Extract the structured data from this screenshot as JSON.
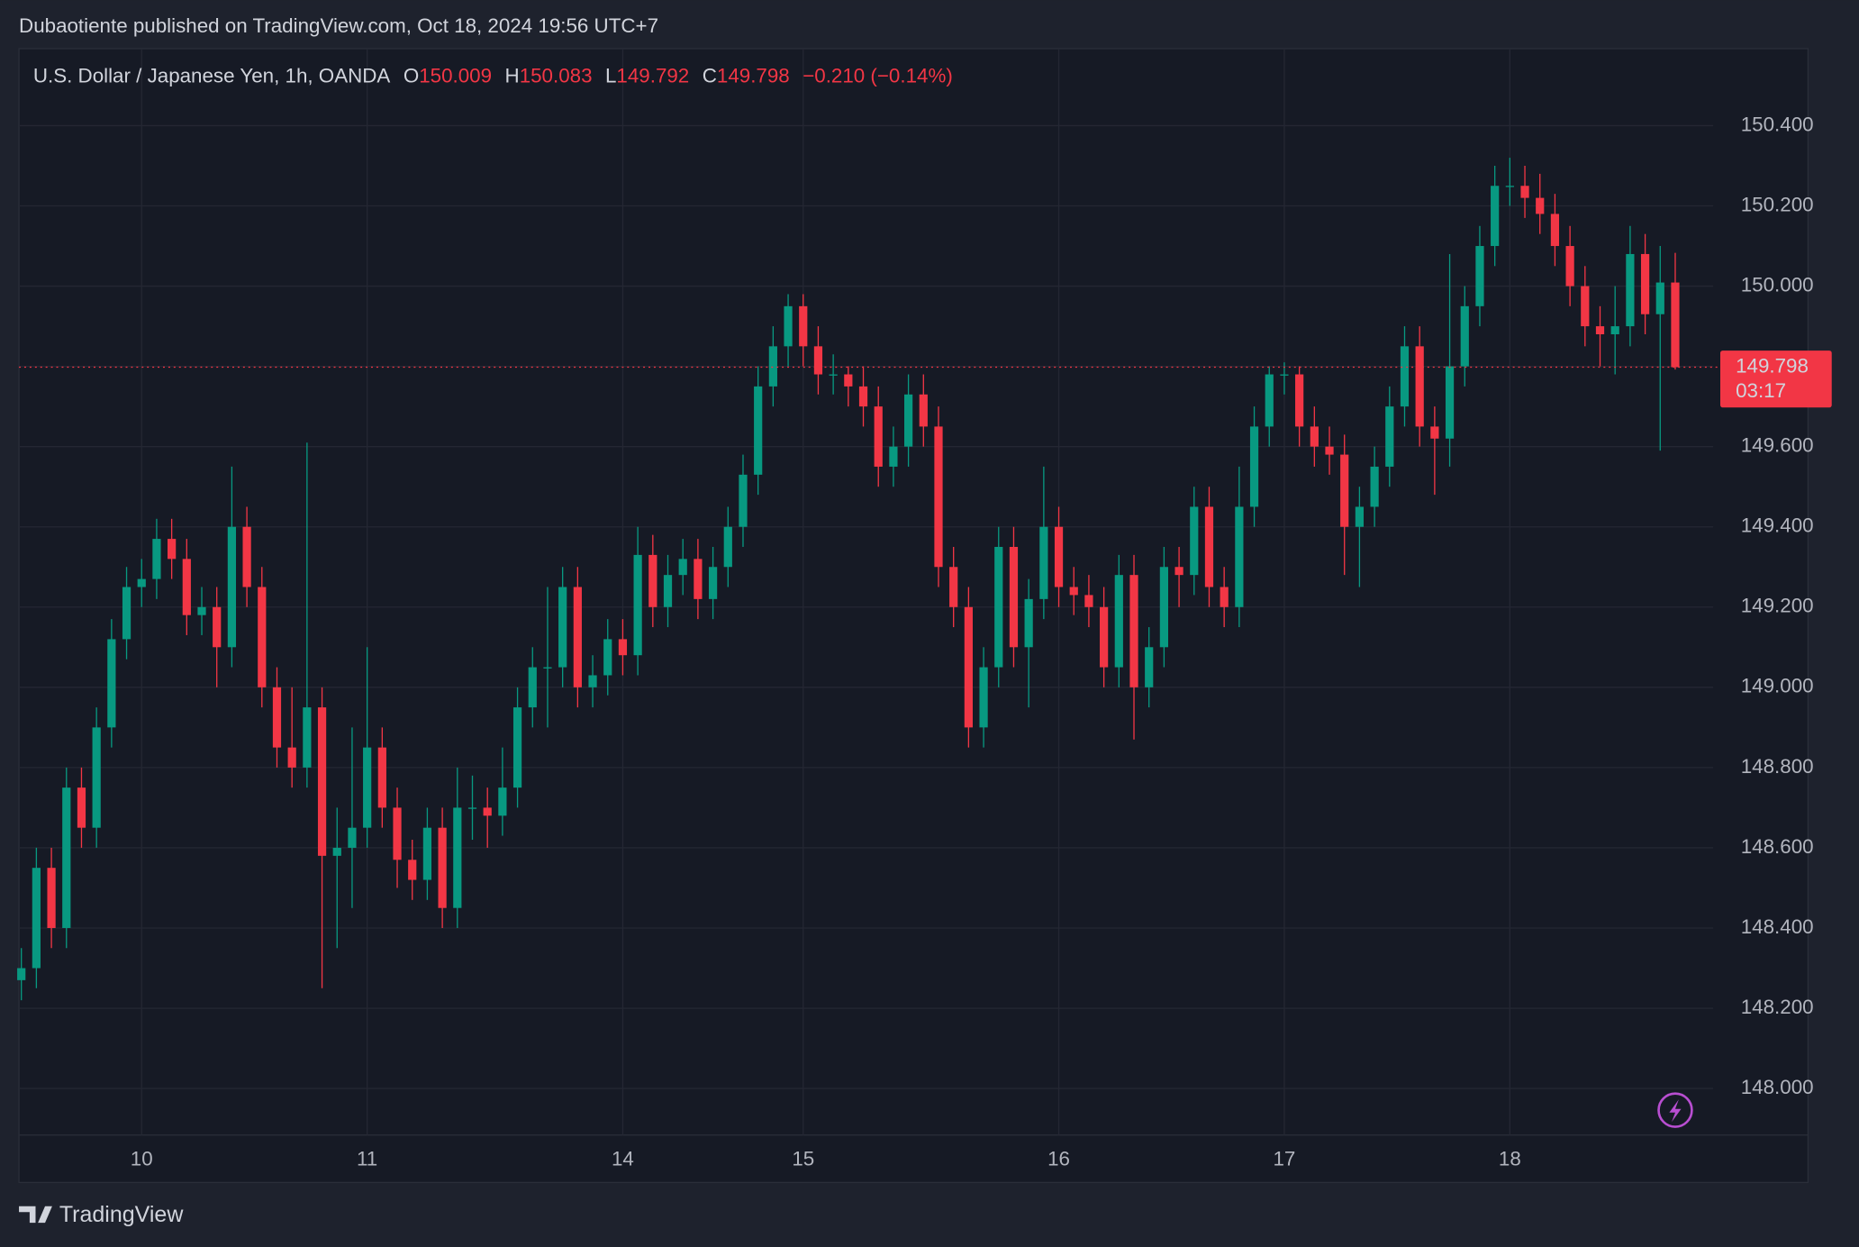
{
  "header": {
    "title": "Dubaotiente published on TradingView.com, Oct 18, 2024 19:56 UTC+7"
  },
  "footer": {
    "brand": "TradingView"
  },
  "chart_data": {
    "type": "candlestick",
    "legend": {
      "symbol": "U.S. Dollar / Japanese Yen, 1h, OANDA",
      "items": [
        {
          "key": "O",
          "value": 150.009
        },
        {
          "key": "H",
          "value": 150.083
        },
        {
          "key": "L",
          "value": 149.792
        },
        {
          "key": "C",
          "value": 149.798
        }
      ],
      "change": "−0.210 (−0.14%)"
    },
    "up_color": "#089981",
    "down_color": "#f23645",
    "last_price": {
      "value": 149.798,
      "countdown": "03:17"
    },
    "ylim": [
      147.884,
      150.592
    ],
    "yticks": [
      {
        "value": 148,
        "label": "148.000"
      },
      {
        "value": 148.2,
        "label": "148.200"
      },
      {
        "value": 148.4,
        "label": "148.400"
      },
      {
        "value": 148.6,
        "label": "148.600"
      },
      {
        "value": 148.8,
        "label": "148.800"
      },
      {
        "value": 149,
        "label": "149.000"
      },
      {
        "value": 149.2,
        "label": "149.200"
      },
      {
        "value": 149.4,
        "label": "149.400"
      },
      {
        "value": 149.6,
        "label": "149.600"
      },
      {
        "value": 149.8,
        "label": "149.800"
      },
      {
        "value": 150,
        "label": "150.000"
      },
      {
        "value": 150.2,
        "label": "150.200"
      },
      {
        "value": 150.4,
        "label": "150.400"
      }
    ],
    "grid": true,
    "categories": [
      null,
      null,
      null,
      null,
      null,
      null,
      null,
      null,
      "10",
      null,
      null,
      null,
      null,
      null,
      null,
      null,
      null,
      null,
      null,
      null,
      null,
      null,
      null,
      "11",
      null,
      null,
      null,
      null,
      null,
      null,
      null,
      null,
      null,
      null,
      null,
      null,
      null,
      null,
      null,
      null,
      "14",
      null,
      null,
      null,
      null,
      null,
      null,
      null,
      null,
      null,
      null,
      null,
      "15",
      null,
      null,
      null,
      null,
      null,
      null,
      null,
      null,
      null,
      null,
      null,
      null,
      null,
      null,
      null,
      null,
      "16",
      null,
      null,
      null,
      null,
      null,
      null,
      null,
      null,
      null,
      null,
      null,
      null,
      null,
      null,
      "17",
      null,
      null,
      null,
      null,
      null,
      null,
      null,
      null,
      null,
      null,
      null,
      null,
      null,
      null,
      "18",
      null,
      null,
      null,
      null,
      null,
      null,
      null,
      null,
      null,
      null,
      null
    ],
    "open": [
      148.27,
      148.3,
      148.55,
      148.4,
      148.75,
      148.65,
      148.9,
      149.12,
      149.25,
      149.27,
      149.37,
      149.32,
      149.18,
      149.2,
      149.1,
      149.4,
      149.25,
      149.0,
      148.85,
      148.8,
      148.95,
      148.58,
      148.6,
      148.65,
      148.85,
      148.7,
      148.57,
      148.52,
      148.65,
      148.45,
      148.7,
      148.7,
      148.68,
      148.75,
      148.95,
      149.05,
      149.05,
      149.25,
      149.0,
      149.03,
      149.12,
      149.08,
      149.33,
      149.2,
      149.28,
      149.32,
      149.22,
      149.3,
      149.4,
      149.53,
      149.75,
      149.85,
      149.95,
      149.85,
      149.78,
      149.78,
      149.75,
      149.7,
      149.55,
      149.6,
      149.73,
      149.65,
      149.3,
      149.2,
      148.9,
      149.05,
      149.35,
      149.1,
      149.22,
      149.4,
      149.25,
      149.23,
      149.2,
      149.05,
      149.28,
      149.0,
      149.1,
      149.3,
      149.28,
      149.45,
      149.25,
      149.2,
      149.45,
      149.65,
      149.78,
      149.78,
      149.65,
      149.6,
      149.58,
      149.4,
      149.45,
      149.55,
      149.7,
      149.85,
      149.65,
      149.62,
      149.8,
      149.95,
      150.1,
      150.25,
      150.25,
      150.22,
      150.18,
      150.1,
      150.0,
      149.9,
      149.88,
      149.9,
      150.08,
      149.93,
      150.009
    ],
    "high": [
      148.35,
      148.6,
      148.6,
      148.8,
      148.8,
      148.95,
      149.17,
      149.3,
      149.32,
      149.42,
      149.42,
      149.37,
      149.25,
      149.25,
      149.55,
      149.45,
      149.3,
      149.05,
      149.0,
      149.61,
      149.0,
      148.7,
      148.9,
      149.1,
      148.9,
      148.75,
      148.62,
      148.7,
      148.7,
      148.8,
      148.78,
      148.75,
      148.85,
      149.0,
      149.1,
      149.25,
      149.3,
      149.3,
      149.08,
      149.17,
      149.17,
      149.4,
      149.38,
      149.33,
      149.37,
      149.37,
      149.35,
      149.45,
      149.58,
      149.8,
      149.9,
      149.98,
      149.98,
      149.9,
      149.83,
      149.8,
      149.8,
      149.75,
      149.65,
      149.78,
      149.78,
      149.7,
      149.35,
      149.25,
      149.1,
      149.4,
      149.4,
      149.27,
      149.55,
      149.45,
      149.3,
      149.28,
      149.25,
      149.33,
      149.33,
      149.15,
      149.35,
      149.35,
      149.5,
      149.5,
      149.3,
      149.55,
      149.7,
      149.8,
      149.81,
      149.8,
      149.7,
      149.65,
      149.63,
      149.5,
      149.6,
      149.75,
      149.9,
      149.9,
      149.7,
      150.08,
      150.0,
      150.15,
      150.3,
      150.32,
      150.3,
      150.28,
      150.23,
      150.15,
      150.05,
      149.95,
      150.0,
      150.15,
      150.13,
      150.1,
      150.083
    ],
    "low": [
      148.22,
      148.25,
      148.35,
      148.35,
      148.6,
      148.6,
      148.85,
      149.07,
      149.2,
      149.22,
      149.27,
      149.13,
      149.13,
      149.0,
      149.05,
      149.2,
      148.95,
      148.8,
      148.75,
      148.75,
      148.25,
      148.35,
      148.45,
      148.6,
      148.65,
      148.5,
      148.47,
      148.47,
      148.4,
      148.4,
      148.62,
      148.6,
      148.63,
      148.7,
      148.9,
      148.9,
      149.0,
      148.95,
      148.95,
      148.98,
      149.03,
      149.03,
      149.15,
      149.15,
      149.23,
      149.17,
      149.17,
      149.25,
      149.35,
      149.48,
      149.7,
      149.8,
      149.8,
      149.73,
      149.73,
      149.7,
      149.65,
      149.5,
      149.5,
      149.55,
      149.6,
      149.25,
      149.15,
      148.85,
      148.85,
      149.0,
      149.05,
      148.95,
      149.17,
      149.2,
      149.18,
      149.15,
      149.0,
      149.0,
      148.87,
      148.95,
      149.05,
      149.2,
      149.23,
      149.2,
      149.15,
      149.15,
      149.4,
      149.6,
      149.73,
      149.6,
      149.55,
      149.53,
      149.28,
      149.25,
      149.4,
      149.5,
      149.65,
      149.6,
      149.48,
      149.55,
      149.75,
      149.9,
      150.05,
      150.2,
      150.17,
      150.13,
      150.05,
      149.95,
      149.85,
      149.8,
      149.78,
      149.85,
      149.88,
      149.59,
      149.792
    ],
    "close": [
      148.3,
      148.55,
      148.4,
      148.75,
      148.65,
      148.9,
      149.12,
      149.25,
      149.27,
      149.37,
      149.32,
      149.18,
      149.2,
      149.1,
      149.4,
      149.25,
      149.0,
      148.85,
      148.8,
      148.95,
      148.58,
      148.6,
      148.65,
      148.85,
      148.7,
      148.57,
      148.52,
      148.65,
      148.45,
      148.7,
      148.7,
      148.68,
      148.75,
      148.95,
      149.05,
      149.05,
      149.25,
      149.0,
      149.03,
      149.12,
      149.08,
      149.33,
      149.2,
      149.28,
      149.32,
      149.22,
      149.3,
      149.4,
      149.53,
      149.75,
      149.85,
      149.95,
      149.85,
      149.78,
      149.78,
      149.75,
      149.7,
      149.55,
      149.6,
      149.73,
      149.65,
      149.3,
      149.2,
      148.9,
      149.05,
      149.35,
      149.1,
      149.22,
      149.4,
      149.25,
      149.23,
      149.2,
      149.05,
      149.28,
      149.0,
      149.1,
      149.3,
      149.28,
      149.45,
      149.25,
      149.2,
      149.45,
      149.65,
      149.78,
      149.78,
      149.65,
      149.6,
      149.58,
      149.4,
      149.45,
      149.55,
      149.7,
      149.85,
      149.65,
      149.62,
      149.8,
      149.95,
      150.1,
      150.25,
      150.25,
      150.22,
      150.18,
      150.1,
      150.0,
      149.9,
      149.88,
      149.9,
      150.08,
      149.93,
      150.009,
      149.798
    ]
  }
}
